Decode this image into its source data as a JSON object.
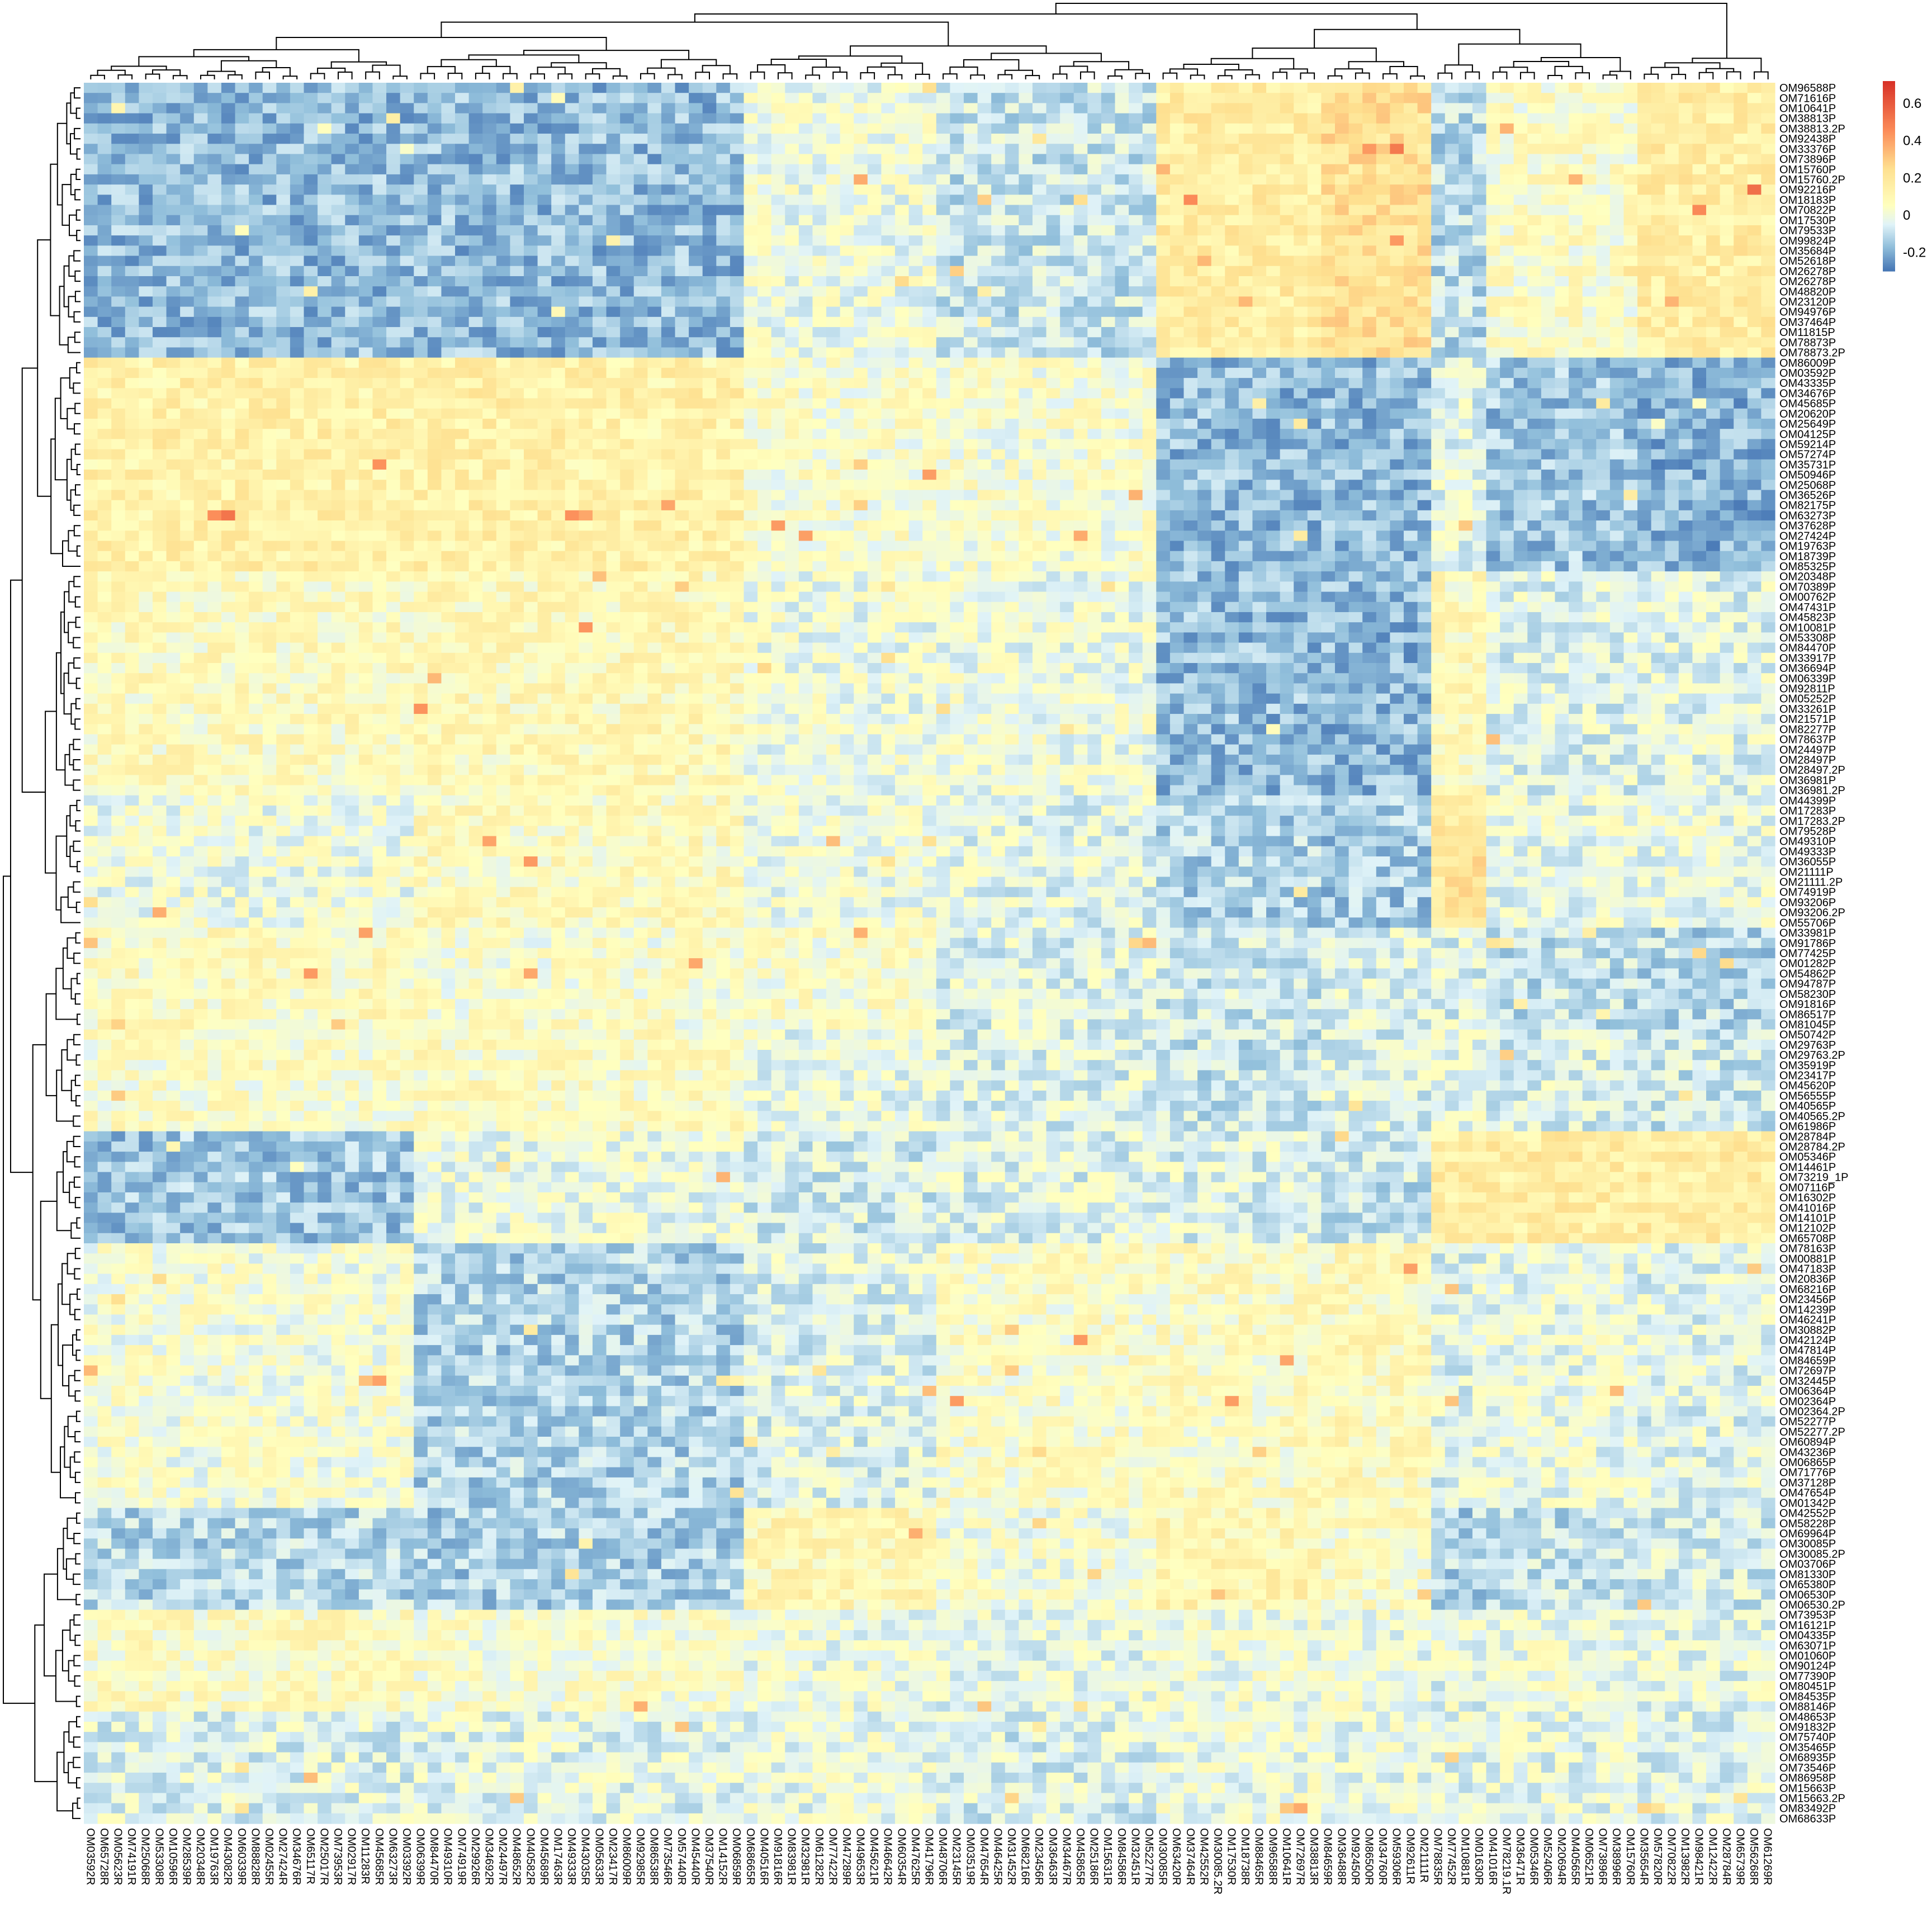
{
  "chart_data": {
    "type": "heatmap",
    "title": "",
    "xlabel": "",
    "ylabel": "",
    "color_scale": {
      "colors": [
        "#4575b4",
        "#91bfdb",
        "#e0f3f8",
        "#ffffbf",
        "#fee090",
        "#fc8d59",
        "#d73027"
      ],
      "stops": [
        -0.3,
        -0.17,
        -0.05,
        0.05,
        0.25,
        0.45,
        0.72
      ],
      "range": [
        -0.3,
        0.72
      ]
    },
    "legend": {
      "position": "top-right",
      "ticks": [
        {
          "value": 0.6,
          "label": "0.6"
        },
        {
          "value": 0.4,
          "label": "0.4"
        },
        {
          "value": 0.2,
          "label": "0.2"
        },
        {
          "value": 0,
          "label": "0"
        },
        {
          "value": -0.2,
          "label": "-0.2"
        }
      ]
    },
    "dendrograms": {
      "rows": true,
      "columns": true
    },
    "row_labels": [
      "OM96588P",
      "OM71616P",
      "OM10641P",
      "OM38813P",
      "OM38813.2P",
      "OM92438P",
      "OM33376P",
      "OM73896P",
      "OM15760P",
      "OM15760.2P",
      "OM92216P",
      "OM18183P",
      "OM70822P",
      "OM17530P",
      "OM79533P",
      "OM99824P",
      "OM35684P",
      "OM52618P",
      "OM26278P",
      "OM26278P",
      "OM48820P",
      "OM23120P",
      "OM94976P",
      "OM37464P",
      "OM11815P",
      "OM78873P",
      "OM78873.2P",
      "OM86009P",
      "OM03592P",
      "OM43335P",
      "OM34676P",
      "OM45685P",
      "OM20620P",
      "OM25649P",
      "OM04125P",
      "OM59214P",
      "OM57274P",
      "OM35731P",
      "OM50946P",
      "OM25068P",
      "OM36526P",
      "OM82175P",
      "OM63273P",
      "OM37628P",
      "OM27424P",
      "OM19763P",
      "OM18739P",
      "OM85325P",
      "OM20348P",
      "OM70389P",
      "OM00762P",
      "OM47431P",
      "OM45823P",
      "OM10081P",
      "OM53308P",
      "OM84470P",
      "OM33917P",
      "OM36694P",
      "OM06339P",
      "OM92811P",
      "OM05252P",
      "OM33261P",
      "OM21571P",
      "OM82277P",
      "OM78637P",
      "OM24497P",
      "OM28497P",
      "OM28497.2P",
      "OM36981P",
      "OM36981.2P",
      "OM44399P",
      "OM17283P",
      "OM17283.2P",
      "OM79528P",
      "OM49310P",
      "OM49333P",
      "OM36055P",
      "OM21111P",
      "OM21111.2P",
      "OM74919P",
      "OM93206P",
      "OM93206.2P",
      "OM55706P",
      "OM33981P",
      "OM91786P",
      "OM77425P",
      "OM01282P",
      "OM54862P",
      "OM94787P",
      "OM58230P",
      "OM91816P",
      "OM86517P",
      "OM81045P",
      "OM50742P",
      "OM29763P",
      "OM29763.2P",
      "OM35919P",
      "OM23417P",
      "OM45620P",
      "OM56555P",
      "OM40565P",
      "OM40565.2P",
      "OM61986P",
      "OM28784P",
      "OM28784.2P",
      "OM05346P",
      "OM14461P",
      "OM73219_1P",
      "OM07116P",
      "OM16302P",
      "OM41016P",
      "OM14101P",
      "OM12102P",
      "OM65708P",
      "OM78163P",
      "OM00881P",
      "OM47183P",
      "OM20836P",
      "OM68216P",
      "OM23456P",
      "OM14239P",
      "OM46241P",
      "OM30882P",
      "OM42124P",
      "OM47814P",
      "OM84659P",
      "OM72697P",
      "OM32445P",
      "OM06364P",
      "OM02364P",
      "OM02364.2P",
      "OM52277P",
      "OM52277.2P",
      "OM60894P",
      "OM43236P",
      "OM06865P",
      "OM71776P",
      "OM37128P",
      "OM47654P",
      "OM01342P",
      "OM42552P",
      "OM58228P",
      "OM69964P",
      "OM30085P",
      "OM30085.2P",
      "OM03706P",
      "OM81330P",
      "OM65380P",
      "OM06530P",
      "OM06530.2P",
      "OM73953P",
      "OM16121P",
      "OM04335P",
      "OM63071P",
      "OM01060P",
      "OM90124P",
      "OM77390P",
      "OM80451P",
      "OM84535P",
      "OM88146P",
      "OM48653P",
      "OM91832P",
      "OM75740P",
      "OM35465P",
      "OM68935P",
      "OM73546P",
      "OM86958P",
      "OM15663P",
      "OM15663.2P",
      "OM83492P",
      "OM68633P"
    ],
    "column_labels": [
      "OM03592R",
      "OM65728R",
      "OM05623R",
      "OM74191R",
      "OM25068R",
      "OM53308R",
      "OM10596R",
      "OM28539R",
      "OM20348R",
      "OM19763R",
      "OM43082R",
      "OM60339R",
      "OM88828R",
      "OM02455R",
      "OM27424R",
      "OM34676R",
      "OM65117R",
      "OM25017R",
      "OM73953R",
      "OM02917R",
      "OM11283R",
      "OM45685R",
      "OM63273R",
      "OM03392R",
      "OM06399R",
      "OM84470R",
      "OM49310R",
      "OM74919R",
      "OM29926R",
      "OM34692R",
      "OM24497R",
      "OM48652R",
      "OM40582R",
      "OM45689R",
      "OM17463R",
      "OM49333R",
      "OM43035R",
      "OM05633R",
      "OM23417R",
      "OM86009R",
      "OM92985R",
      "OM86538R",
      "OM73546R",
      "OM57440R",
      "OM45440R",
      "OM37540R",
      "OM14152R",
      "OM06859R",
      "OM68665R",
      "OM40516R",
      "OM91816R",
      "OM83981R",
      "OM32981R",
      "OM61282R",
      "OM77422R",
      "OM47289R",
      "OM49653R",
      "OM45621R",
      "OM46642R",
      "OM60354R",
      "OM47625R",
      "OM41796R",
      "OM48706R",
      "OM23145R",
      "OM03519R",
      "OM47654R",
      "OM46425R",
      "OM31452R",
      "OM68216R",
      "OM23456R",
      "OM36463R",
      "OM34467R",
      "OM45865R",
      "OM25186R",
      "OM15631R",
      "OM84586R",
      "OM32451R",
      "OM52277R",
      "OM30085R",
      "OM63420R",
      "OM37464R",
      "OM42552R",
      "OM30085.2R",
      "OM17530R",
      "OM18738R",
      "OM88465R",
      "OM96588R",
      "OM10641R",
      "OM72697R",
      "OM38813R",
      "OM84659R",
      "OM36488R",
      "OM92450R",
      "OM86500R",
      "OM34760R",
      "OM59306R",
      "OM92611R",
      "OM21111R",
      "OM78835R",
      "OM77452R",
      "OM10881R",
      "OM01630R",
      "OM41016R",
      "OM78219.1R",
      "OM36471R",
      "OM05346R",
      "OM52406R",
      "OM20694R",
      "OM40565R",
      "OM06521R",
      "OM73896R",
      "OM38996R",
      "OM15760R",
      "OM35654R",
      "OM57820R",
      "OM70822R",
      "OM13982R",
      "OM98421R",
      "OM12422R",
      "OM28784R",
      "OM65739R",
      "OM56268R",
      "OM61269R"
    ],
    "values_note": ""
  }
}
